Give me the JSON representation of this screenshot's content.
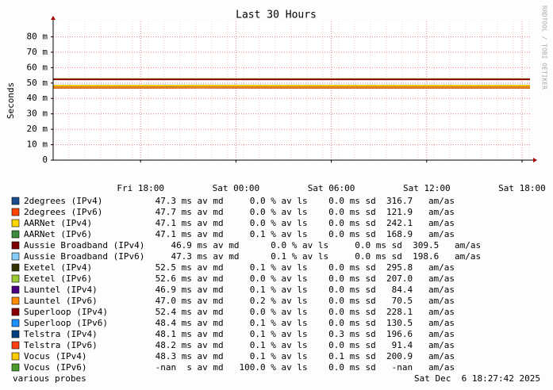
{
  "chart_data": {
    "type": "line",
    "title": "Last 30 Hours",
    "y_label": "Seconds",
    "watermark": "RRDTOOL / TOBI OETIKER",
    "xlim": [
      0,
      30
    ],
    "xticks": [
      {
        "value": 5.5,
        "label": "Fri 18:00"
      },
      {
        "value": 11.5,
        "label": "Sat 00:00"
      },
      {
        "value": 17.5,
        "label": "Sat 06:00"
      },
      {
        "value": 23.5,
        "label": "Sat 12:00"
      },
      {
        "value": 29.5,
        "label": "Sat 18:00"
      }
    ],
    "ylim": [
      0,
      0.09
    ],
    "yticks": [
      {
        "value": 0,
        "label": "0"
      },
      {
        "value": 0.01,
        "label": "10 m"
      },
      {
        "value": 0.02,
        "label": "20 m"
      },
      {
        "value": 0.03,
        "label": "30 m"
      },
      {
        "value": 0.04,
        "label": "40 m"
      },
      {
        "value": 0.05,
        "label": "50 m"
      },
      {
        "value": 0.06,
        "label": "60 m"
      },
      {
        "value": 0.07,
        "label": "70 m"
      },
      {
        "value": 0.08,
        "label": "80 m"
      }
    ],
    "grid": true,
    "x": [
      0,
      5,
      10,
      15,
      20,
      25,
      30
    ],
    "series": [
      {
        "name": "2degrees (IPv4)",
        "color": "#1a4f8f",
        "values": [
          0.0473,
          0.0472,
          0.0474,
          0.0473,
          0.0472,
          0.0473,
          0.0473
        ],
        "stats": "          47.3 ms av md     0.0 % av ls    0.0 ms sd  316.7   am/as"
      },
      {
        "name": "2degrees (IPv6)",
        "color": "#ff4500",
        "values": [
          0.0477,
          0.0476,
          0.0478,
          0.0477,
          0.0477,
          0.0477,
          0.0477
        ],
        "stats": "          47.7 ms av md     0.0 % av ls    0.0 ms sd  121.9   am/as"
      },
      {
        "name": "AARNet (IPv4)",
        "color": "#ffd700",
        "values": [
          0.0471,
          0.0471,
          0.0472,
          0.0471,
          0.0471,
          0.0471,
          0.0471
        ],
        "stats": "            47.1 ms av md     0.0 % av ls    0.0 ms sd  242.1   am/as"
      },
      {
        "name": "AARNet (IPv6)",
        "color": "#3c8c3c",
        "values": [
          0.0471,
          0.0472,
          0.0471,
          0.0471,
          0.0471,
          0.0471,
          0.0471
        ],
        "stats": "            47.1 ms av md     0.1 % av ls    0.0 ms sd  168.9   am/as"
      },
      {
        "name": "Aussie Broadband (IPv4)",
        "color": "#800000",
        "values": [
          0.0469,
          0.0469,
          0.047,
          0.0469,
          0.0469,
          0.0469,
          0.0469
        ],
        "stats": "     46.9 ms av md      0.0 % av ls     0.0 ms sd  309.5   am/as"
      },
      {
        "name": "Aussie Broadband (IPv6)",
        "color": "#87cefa",
        "values": [
          0.0473,
          0.0473,
          0.0474,
          0.0473,
          0.0473,
          0.0473,
          0.0473
        ],
        "stats": "     47.3 ms av md      0.1 % av ls     0.0 ms sd  198.6   am/as"
      },
      {
        "name": "Exetel (IPv4)",
        "color": "#333300",
        "values": [
          0.0525,
          0.0525,
          0.0525,
          0.0525,
          0.0525,
          0.0525,
          0.0525
        ],
        "stats": "            52.5 ms av md     0.1 % av ls    0.0 ms sd  295.8   am/as"
      },
      {
        "name": "Exetel (IPv6)",
        "color": "#9acd32",
        "values": [
          0.0526,
          0.0526,
          0.0526,
          0.0526,
          0.0526,
          0.0526,
          0.0526
        ],
        "stats": "            52.6 ms av md     0.0 % av ls    0.0 ms sd  207.0   am/as"
      },
      {
        "name": "Launtel (IPv4)",
        "color": "#4b0082",
        "values": [
          0.0469,
          0.0469,
          0.047,
          0.0469,
          0.0469,
          0.0469,
          0.0469
        ],
        "stats": "           46.9 ms av md     0.1 % av ls    0.0 ms sd   84.4   am/as"
      },
      {
        "name": "Launtel (IPv6)",
        "color": "#ff8c00",
        "values": [
          0.047,
          0.047,
          0.0471,
          0.047,
          0.047,
          0.047,
          0.047
        ],
        "stats": "           47.0 ms av md     0.2 % av ls    0.0 ms sd   70.5   am/as"
      },
      {
        "name": "Superloop (IPv4)",
        "color": "#8b0000",
        "values": [
          0.0524,
          0.0524,
          0.0524,
          0.0524,
          0.0524,
          0.0524,
          0.0524
        ],
        "stats": "         52.4 ms av md     0.0 % av ls    0.0 ms sd  228.1   am/as"
      },
      {
        "name": "Superloop (IPv6)",
        "color": "#1e90ff",
        "values": [
          0.0484,
          0.0484,
          0.0485,
          0.0484,
          0.0484,
          0.0484,
          0.0484
        ],
        "stats": "         48.4 ms av md     0.1 % av ls    0.0 ms sd  130.5   am/as"
      },
      {
        "name": "Telstra (IPv4)",
        "color": "#003f7f",
        "values": [
          0.0481,
          0.0481,
          0.0482,
          0.0481,
          0.0481,
          0.0481,
          0.0481
        ],
        "stats": "           48.1 ms av md     0.1 % av ls    0.3 ms sd  196.6   am/as"
      },
      {
        "name": "Telstra (IPv6)",
        "color": "#ff4010",
        "values": [
          0.0482,
          0.0482,
          0.0483,
          0.0482,
          0.0482,
          0.0482,
          0.0482
        ],
        "stats": "           48.2 ms av md     0.1 % av ls    0.0 ms sd   91.4   am/as"
      },
      {
        "name": "Vocus (IPv4)",
        "color": "#ffcc00",
        "values": [
          0.0483,
          0.0483,
          0.0484,
          0.0483,
          0.0483,
          0.0483,
          0.0483
        ],
        "stats": "             48.3 ms av md     0.1 % av ls    0.1 ms sd  200.9   am/as"
      },
      {
        "name": "Vocus (IPv6)",
        "color": "#4b9a2e",
        "values": [
          null,
          null,
          null,
          null,
          null,
          null,
          null
        ],
        "stats": "             -nan  s av md   100.0 % av ls    0.0 ms sd   -nan   am/as"
      }
    ],
    "footer_left": "various probes",
    "footer_right": "Sat Dec  6 18:27:42 2025"
  }
}
